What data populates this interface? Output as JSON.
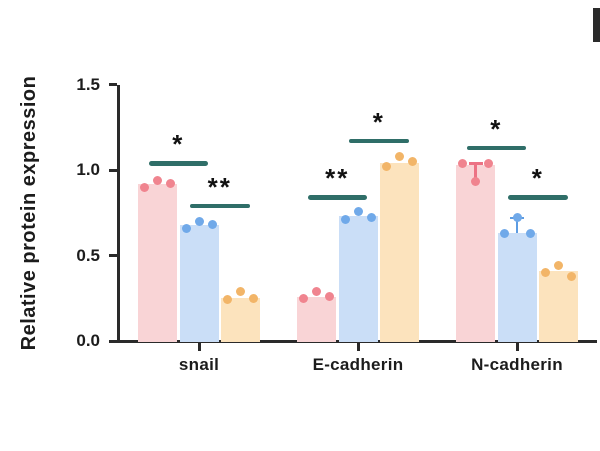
{
  "chart_data": {
    "type": "bar",
    "title": "",
    "ylabel": "Relative protein expression",
    "xlabel": "",
    "ylim": [
      0,
      1.5
    ],
    "ytick_labels": [
      "0.0",
      "0.5",
      "1.0",
      "1.5"
    ],
    "yticks": [
      0.0,
      0.5,
      1.0,
      1.5
    ],
    "categories": [
      "snail",
      "E-cadherin",
      "N-cadherin"
    ],
    "grid": false,
    "legend": "none",
    "series": [
      {
        "name": "pink",
        "bar_color": "#f9d4d6",
        "point_color": "#f0848f",
        "error_color": "#ec7284",
        "values": [
          0.92,
          0.26,
          1.03
        ],
        "points": [
          [
            0.9,
            0.94,
            0.92
          ],
          [
            0.25,
            0.29,
            0.26
          ],
          [
            1.04,
            0.93,
            1.04
          ]
        ]
      },
      {
        "name": "blue",
        "bar_color": "#cadef7",
        "point_color": "#70a9e9",
        "error_color": "#5d9ce2",
        "values": [
          0.68,
          0.73,
          0.63
        ],
        "points": [
          [
            0.66,
            0.7,
            0.68
          ],
          [
            0.71,
            0.76,
            0.72
          ],
          [
            0.63,
            0.72,
            0.63
          ]
        ]
      },
      {
        "name": "orange",
        "bar_color": "#fce3bd",
        "point_color": "#f2b568",
        "error_color": "#eda84f",
        "values": [
          0.25,
          1.04,
          0.41
        ],
        "points": [
          [
            0.24,
            0.29,
            0.25
          ],
          [
            1.02,
            1.08,
            1.05
          ],
          [
            0.4,
            0.44,
            0.38
          ]
        ]
      }
    ],
    "error_bars": [
      {
        "category": 2,
        "series": 0,
        "low": 0.93,
        "high": 1.04
      },
      {
        "category": 2,
        "series": 1,
        "low": 0.63,
        "high": 0.72
      }
    ],
    "significance": [
      {
        "category": 0,
        "from_series": 0,
        "to_series": 1,
        "label": "*",
        "line_y": 1.04
      },
      {
        "category": 0,
        "from_series": 1,
        "to_series": 2,
        "label": "**",
        "line_y": 0.79
      },
      {
        "category": 1,
        "from_series": 0,
        "to_series": 1,
        "label": "**",
        "line_y": 0.84
      },
      {
        "category": 1,
        "from_series": 1,
        "to_series": 2,
        "label": "*",
        "line_y": 1.17
      },
      {
        "category": 2,
        "from_series": 0,
        "to_series": 1,
        "label": "*",
        "line_y": 1.13
      },
      {
        "category": 2,
        "from_series": 1,
        "to_series": 2,
        "label": "*",
        "line_y": 0.84
      }
    ],
    "colors": {
      "axis": "#2a2a2a",
      "sig_line": "#2f6e68",
      "text": "#1c1c1c"
    }
  }
}
